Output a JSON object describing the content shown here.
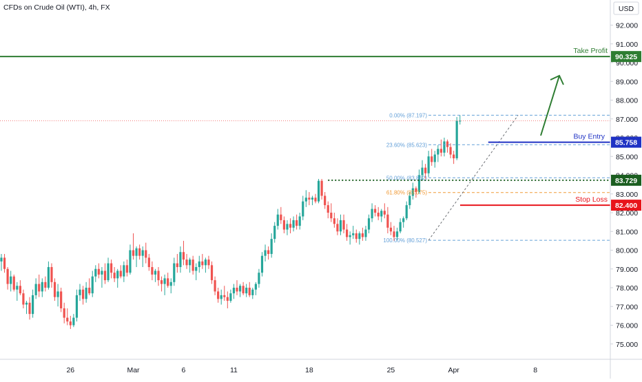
{
  "header": {
    "title": "CFDs on Crude Oil (WTI), 4h, FX"
  },
  "axis": {
    "currency": "USD"
  },
  "colors": {
    "up": "#26a69a",
    "down": "#ef5350",
    "take_profit": "#2e7d32",
    "buy_entry": "#1f32c4",
    "stop_loss": "#e8141b",
    "level": "#1b5e20",
    "fib": "#64a0d8",
    "fib_618": "#f09a36",
    "arrow": "#2e7d32",
    "last_price": "#ef5350"
  },
  "chart_data": {
    "type": "candlestick",
    "title": "CFDs on Crude Oil (WTI), 4h, FX",
    "ylabel": "USD",
    "ylim": [
      74.1,
      93.0
    ],
    "y_ticks": [
      "75.000",
      "76.000",
      "77.000",
      "78.000",
      "79.000",
      "80.000",
      "81.000",
      "82.000",
      "83.000",
      "84.000",
      "85.000",
      "86.000",
      "87.000",
      "88.000",
      "89.000",
      "90.000",
      "91.000",
      "92.000"
    ],
    "x_ticks": [
      {
        "label": "26",
        "index": 22
      },
      {
        "label": "Mar",
        "index": 42
      },
      {
        "label": "6",
        "index": 58
      },
      {
        "label": "11",
        "index": 74
      },
      {
        "label": "18",
        "index": 98
      },
      {
        "label": "25",
        "index": 124
      },
      {
        "label": "Apr",
        "index": 144
      },
      {
        "label": "8",
        "index": 170
      }
    ],
    "candles": [
      [
        79.4,
        79.8,
        78.9,
        79.6
      ],
      [
        79.6,
        79.8,
        78.8,
        79.0
      ],
      [
        79.0,
        79.1,
        77.9,
        78.2
      ],
      [
        78.2,
        78.9,
        77.8,
        78.6
      ],
      [
        78.6,
        78.7,
        77.8,
        77.9
      ],
      [
        77.9,
        78.3,
        77.3,
        78.1
      ],
      [
        78.1,
        78.4,
        77.6,
        77.7
      ],
      [
        77.7,
        77.9,
        76.9,
        77.1
      ],
      [
        77.1,
        77.3,
        76.6,
        77.2
      ],
      [
        77.2,
        77.5,
        76.3,
        76.6
      ],
      [
        76.6,
        77.9,
        76.4,
        77.6
      ],
      [
        77.6,
        78.5,
        77.4,
        78.2
      ],
      [
        78.2,
        78.7,
        77.5,
        77.8
      ],
      [
        77.8,
        78.5,
        77.5,
        78.3
      ],
      [
        78.3,
        78.6,
        77.8,
        78.0
      ],
      [
        78.0,
        79.4,
        77.9,
        79.1
      ],
      [
        79.1,
        79.3,
        78.0,
        78.3
      ],
      [
        78.3,
        78.5,
        77.3,
        77.5
      ],
      [
        77.5,
        78.2,
        77.0,
        77.8
      ],
      [
        77.8,
        78.0,
        76.7,
        76.9
      ],
      [
        76.9,
        77.2,
        76.1,
        76.4
      ],
      [
        76.4,
        76.9,
        76.0,
        76.2
      ],
      [
        76.2,
        76.5,
        75.8,
        76.0
      ],
      [
        76.0,
        76.6,
        75.9,
        76.4
      ],
      [
        76.4,
        77.9,
        76.2,
        77.6
      ],
      [
        77.6,
        78.2,
        77.3,
        77.9
      ],
      [
        77.9,
        78.1,
        77.1,
        77.4
      ],
      [
        77.4,
        78.3,
        77.2,
        78.0
      ],
      [
        78.0,
        78.5,
        77.6,
        77.7
      ],
      [
        77.7,
        78.9,
        77.5,
        78.6
      ],
      [
        78.6,
        79.2,
        78.3,
        79.0
      ],
      [
        79.0,
        79.3,
        78.5,
        78.7
      ],
      [
        78.7,
        79.1,
        78.0,
        78.9
      ],
      [
        78.9,
        79.3,
        78.2,
        78.4
      ],
      [
        78.4,
        79.6,
        78.3,
        79.3
      ],
      [
        79.3,
        79.5,
        78.5,
        78.8
      ],
      [
        78.8,
        79.1,
        78.3,
        78.5
      ],
      [
        78.5,
        79.0,
        78.0,
        78.9
      ],
      [
        78.9,
        79.2,
        78.5,
        78.6
      ],
      [
        78.6,
        79.4,
        78.3,
        79.2
      ],
      [
        79.2,
        79.5,
        78.6,
        78.8
      ],
      [
        78.8,
        80.3,
        78.7,
        80.0
      ],
      [
        80.0,
        80.9,
        79.5,
        79.7
      ],
      [
        79.7,
        80.2,
        79.1,
        80.1
      ],
      [
        80.1,
        80.3,
        79.5,
        79.7
      ],
      [
        79.7,
        80.2,
        79.1,
        80.0
      ],
      [
        80.0,
        80.4,
        79.3,
        79.6
      ],
      [
        79.6,
        79.8,
        78.9,
        79.1
      ],
      [
        79.1,
        79.4,
        78.4,
        78.7
      ],
      [
        78.7,
        79.0,
        78.3,
        78.9
      ],
      [
        78.9,
        79.1,
        78.1,
        78.4
      ],
      [
        78.4,
        78.6,
        77.8,
        78.2
      ],
      [
        78.2,
        78.7,
        77.6,
        78.5
      ],
      [
        78.5,
        78.8,
        78.0,
        78.1
      ],
      [
        78.1,
        78.5,
        77.7,
        78.3
      ],
      [
        78.3,
        79.6,
        78.1,
        79.3
      ],
      [
        79.3,
        79.8,
        78.8,
        79.1
      ],
      [
        79.1,
        80.2,
        78.8,
        79.9
      ],
      [
        79.9,
        80.5,
        79.2,
        79.5
      ],
      [
        79.5,
        79.8,
        79.0,
        79.2
      ],
      [
        79.2,
        79.6,
        78.8,
        79.5
      ],
      [
        79.5,
        79.7,
        78.7,
        78.9
      ],
      [
        78.9,
        79.3,
        78.4,
        79.1
      ],
      [
        79.1,
        79.7,
        78.8,
        79.4
      ],
      [
        79.4,
        79.8,
        79.0,
        79.2
      ],
      [
        79.2,
        79.6,
        78.8,
        79.5
      ],
      [
        79.5,
        79.7,
        79.0,
        79.2
      ],
      [
        79.2,
        79.4,
        78.2,
        78.4
      ],
      [
        78.4,
        78.6,
        77.6,
        77.8
      ],
      [
        77.8,
        78.0,
        77.2,
        77.4
      ],
      [
        77.4,
        77.9,
        77.1,
        77.6
      ],
      [
        77.6,
        78.1,
        77.3,
        77.5
      ],
      [
        77.5,
        77.8,
        76.9,
        77.3
      ],
      [
        77.3,
        77.9,
        77.2,
        77.7
      ],
      [
        77.7,
        78.2,
        77.4,
        78.0
      ],
      [
        78.0,
        78.4,
        77.6,
        77.8
      ],
      [
        77.8,
        78.2,
        77.5,
        78.1
      ],
      [
        78.1,
        78.3,
        77.6,
        77.7
      ],
      [
        77.7,
        78.2,
        77.5,
        78.0
      ],
      [
        78.0,
        78.3,
        77.5,
        77.6
      ],
      [
        77.6,
        78.0,
        77.4,
        77.9
      ],
      [
        77.9,
        78.3,
        77.6,
        78.2
      ],
      [
        78.2,
        79.0,
        78.0,
        78.8
      ],
      [
        78.8,
        79.9,
        78.6,
        79.7
      ],
      [
        79.7,
        80.3,
        79.4,
        80.0
      ],
      [
        80.0,
        80.2,
        79.5,
        79.8
      ],
      [
        79.8,
        80.9,
        79.6,
        80.6
      ],
      [
        80.6,
        81.5,
        80.4,
        81.3
      ],
      [
        81.3,
        82.2,
        81.1,
        81.9
      ],
      [
        81.9,
        82.3,
        81.4,
        81.6
      ],
      [
        81.6,
        81.8,
        80.9,
        81.1
      ],
      [
        81.1,
        81.6,
        80.8,
        81.4
      ],
      [
        81.4,
        81.7,
        80.9,
        81.2
      ],
      [
        81.2,
        81.8,
        81.0,
        81.6
      ],
      [
        81.6,
        81.9,
        81.1,
        81.3
      ],
      [
        81.3,
        82.0,
        81.1,
        81.8
      ],
      [
        81.8,
        82.9,
        81.6,
        82.6
      ],
      [
        82.6,
        83.2,
        82.3,
        82.8
      ],
      [
        82.8,
        83.1,
        82.4,
        82.7
      ],
      [
        82.7,
        82.9,
        82.4,
        82.8
      ],
      [
        82.8,
        83.0,
        82.5,
        82.6
      ],
      [
        82.6,
        83.8,
        82.5,
        83.7
      ],
      [
        83.7,
        83.8,
        82.7,
        82.9
      ],
      [
        82.9,
        83.1,
        82.2,
        82.4
      ],
      [
        82.4,
        82.6,
        81.7,
        82.0
      ],
      [
        82.0,
        82.5,
        81.5,
        81.7
      ],
      [
        81.7,
        82.0,
        81.2,
        81.4
      ],
      [
        81.4,
        81.7,
        80.8,
        81.0
      ],
      [
        81.0,
        81.9,
        80.8,
        81.6
      ],
      [
        81.6,
        81.9,
        80.9,
        81.1
      ],
      [
        81.1,
        81.4,
        80.5,
        80.7
      ],
      [
        80.7,
        81.0,
        80.3,
        80.8
      ],
      [
        80.8,
        81.3,
        80.6,
        80.9
      ],
      [
        80.9,
        81.1,
        80.4,
        80.6
      ],
      [
        80.6,
        81.0,
        80.3,
        80.9
      ],
      [
        80.9,
        81.2,
        80.5,
        80.7
      ],
      [
        80.7,
        81.3,
        80.5,
        81.1
      ],
      [
        81.1,
        81.9,
        80.9,
        81.7
      ],
      [
        81.7,
        82.5,
        81.5,
        82.2
      ],
      [
        82.2,
        82.4,
        81.8,
        82.0
      ],
      [
        82.0,
        82.3,
        81.6,
        81.8
      ],
      [
        81.8,
        82.2,
        81.5,
        82.1
      ],
      [
        82.1,
        82.5,
        81.7,
        81.9
      ],
      [
        81.9,
        82.3,
        80.9,
        81.2
      ],
      [
        81.2,
        81.5,
        80.8,
        81.0
      ],
      [
        81.0,
        81.3,
        80.5,
        80.7
      ],
      [
        80.7,
        81.2,
        80.53,
        81.0
      ],
      [
        81.0,
        81.7,
        80.9,
        81.5
      ],
      [
        81.5,
        81.8,
        81.2,
        81.7
      ],
      [
        81.7,
        82.6,
        81.6,
        82.4
      ],
      [
        82.4,
        83.1,
        82.2,
        82.9
      ],
      [
        82.9,
        83.6,
        82.7,
        83.3
      ],
      [
        83.3,
        83.4,
        82.8,
        83.1
      ],
      [
        83.1,
        84.3,
        83.0,
        84.0
      ],
      [
        84.0,
        84.8,
        83.7,
        84.4
      ],
      [
        84.4,
        84.6,
        83.8,
        84.1
      ],
      [
        84.1,
        85.3,
        83.9,
        85.0
      ],
      [
        85.0,
        85.4,
        84.5,
        84.7
      ],
      [
        84.7,
        85.3,
        84.4,
        85.1
      ],
      [
        85.1,
        85.6,
        84.7,
        85.4
      ],
      [
        85.4,
        85.9,
        85.0,
        85.2
      ],
      [
        85.2,
        86.0,
        85.0,
        85.8
      ],
      [
        85.8,
        85.9,
        85.2,
        85.5
      ],
      [
        85.5,
        85.7,
        84.9,
        85.1
      ],
      [
        85.1,
        85.3,
        84.6,
        84.9
      ],
      [
        84.9,
        87.1,
        84.8,
        86.9
      ],
      [
        86.9,
        87.2,
        86.7,
        86.9
      ]
    ],
    "levels": [
      {
        "label": "Take Profit",
        "value": 90.325,
        "value_label": "90.325"
      },
      {
        "label": "Buy Entry",
        "value": 85.758,
        "value_label": "85.758"
      },
      {
        "label": "",
        "value": 83.729,
        "value_label": "83.729"
      },
      {
        "label": "Stop Loss",
        "value": 82.4,
        "value_label": "82.400"
      }
    ],
    "fibonacci": [
      {
        "label": "0.00% (87.197)",
        "value": 87.197
      },
      {
        "label": "23.60% (85.623)",
        "value": 85.623
      },
      {
        "label": "50.00% (83.862)",
        "value": 83.862
      },
      {
        "label": "61.80% (83.075)",
        "value": 83.075
      },
      {
        "label": "100.00% (80.527)",
        "value": 80.527
      }
    ],
    "last_price": 86.9
  }
}
